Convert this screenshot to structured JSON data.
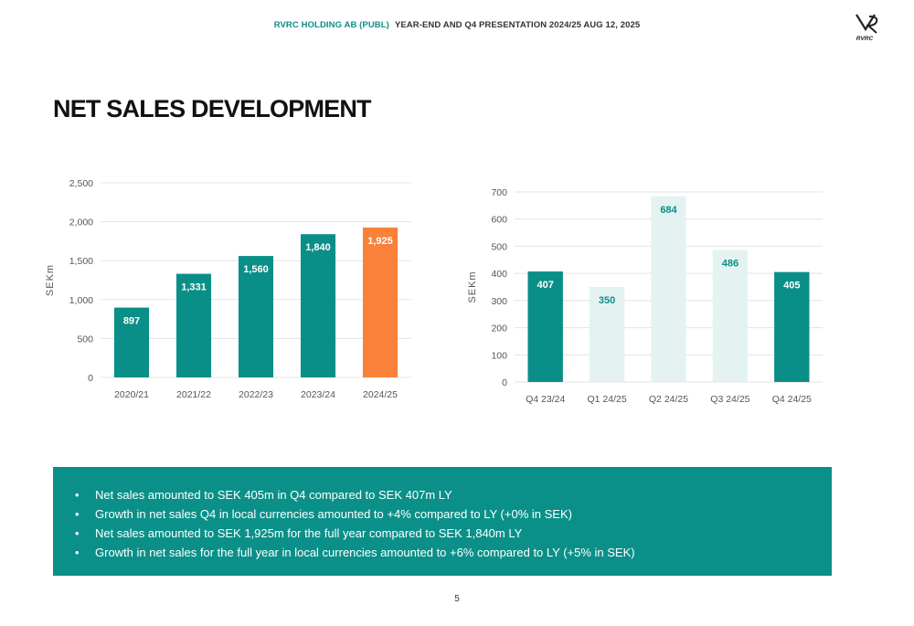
{
  "header": {
    "company": "RVRC HOLDING AB (PUBL)",
    "presentation": "YEAR-END AND Q4 PRESENTATION 2024/25  AUG 12, 2025"
  },
  "logo": {
    "icon": "rvrc-logo-icon",
    "text": "RVRC"
  },
  "title": "NET SALES DEVELOPMENT",
  "chart_data": [
    {
      "type": "bar",
      "title": "",
      "xlabel": "",
      "ylabel": "SEKm",
      "ylim": [
        0,
        2500
      ],
      "yticks": [
        0,
        500,
        1000,
        1500,
        2000,
        2500
      ],
      "ytick_labels": [
        "0",
        "500",
        "1,000",
        "1,500",
        "2,000",
        "2,500"
      ],
      "grid": true,
      "legend": "none",
      "categories": [
        "2020/21",
        "2021/22",
        "2022/23",
        "2023/24",
        "2024/25"
      ],
      "values": [
        897,
        1331,
        1560,
        1840,
        1925
      ],
      "value_labels": [
        "897",
        "1,331",
        "1,560",
        "1,840",
        "1,925"
      ],
      "colors": [
        "#0a8f88",
        "#0a8f88",
        "#0a8f88",
        "#0a8f88",
        "#f9813a"
      ]
    },
    {
      "type": "bar",
      "title": "",
      "xlabel": "",
      "ylabel": "SEKm",
      "ylim": [
        0,
        700
      ],
      "yticks": [
        0,
        100,
        200,
        300,
        400,
        500,
        600,
        700
      ],
      "ytick_labels": [
        "0",
        "100",
        "200",
        "300",
        "400",
        "500",
        "600",
        "700"
      ],
      "grid": true,
      "legend": "none",
      "categories": [
        "Q4 23/24",
        "Q1 24/25",
        "Q2 24/25",
        "Q3 24/25",
        "Q4 24/25"
      ],
      "values": [
        407,
        350,
        684,
        486,
        405
      ],
      "value_labels": [
        "407",
        "350",
        "684",
        "486",
        "405"
      ],
      "colors": [
        "#0a8f88",
        "#e4f3f2",
        "#e4f3f2",
        "#e4f3f2",
        "#0a8f88"
      ],
      "label_colors": [
        "#ffffff",
        "#0a8f88",
        "#0a8f88",
        "#0a8f88",
        "#ffffff"
      ]
    }
  ],
  "bullets": [
    "Net sales amounted to SEK 405m in Q4 compared to SEK 407m LY",
    "Growth in net sales Q4 in local currencies amounted to +4% compared to LY (+0% in SEK)",
    "Net sales amounted to SEK 1,925m for the full year compared to SEK 1,840m LY",
    "Growth in net sales for the full year in local currencies amounted to +6% compared to LY (+5% in SEK)"
  ],
  "page_number": "5"
}
